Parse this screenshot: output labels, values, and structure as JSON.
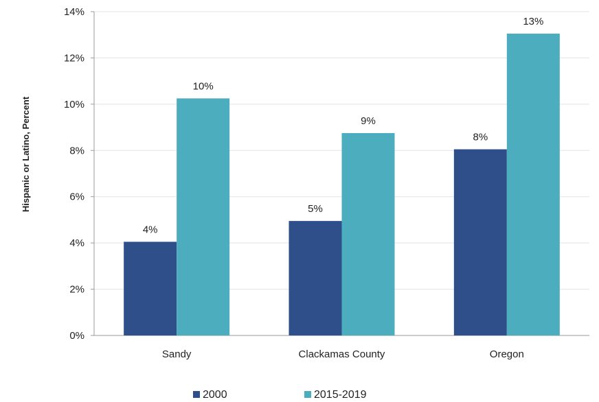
{
  "chart_data": {
    "type": "bar",
    "categories": [
      "Sandy",
      "Clackamas County",
      "Oregon"
    ],
    "series": [
      {
        "name": "2000",
        "values": [
          4.05,
          4.95,
          8.05
        ],
        "labels": [
          "4%",
          "5%",
          "8%"
        ],
        "color": "#2e4f8a"
      },
      {
        "name": "2015-2019",
        "values": [
          10.25,
          8.75,
          13.05
        ],
        "labels": [
          "10%",
          "9%",
          "13%"
        ],
        "color": "#4badbe"
      }
    ],
    "title": "",
    "xlabel": "",
    "ylabel": "Hispanic or Latino, Percent",
    "ylim": [
      0,
      14
    ],
    "yticks": [
      {
        "value": 0,
        "label": "0%"
      },
      {
        "value": 2,
        "label": "2%"
      },
      {
        "value": 4,
        "label": "4%"
      },
      {
        "value": 6,
        "label": "6%"
      },
      {
        "value": 8,
        "label": "8%"
      },
      {
        "value": 10,
        "label": "10%"
      },
      {
        "value": 12,
        "label": "12%"
      },
      {
        "value": 14,
        "label": "14%"
      }
    ],
    "grid": true,
    "legend": "bottom-center"
  }
}
